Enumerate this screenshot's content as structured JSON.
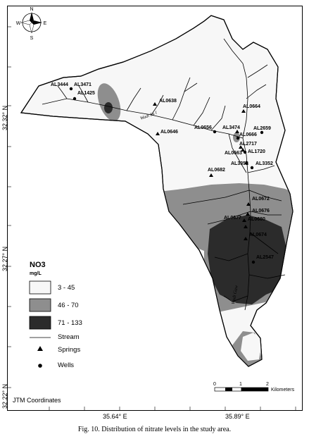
{
  "map": {
    "compass": {
      "north": "N",
      "south": "S",
      "east": "E",
      "west": "W"
    },
    "lat_labels": [
      "32.32° N",
      "32.27° N",
      "32.22° N"
    ],
    "lon_labels": [
      "35.64° E",
      "35.89° E"
    ],
    "coordinate_note": "JTM Coordinates",
    "wadi_labels": [
      "Wadi Su l",
      "Wadi Gaw"
    ],
    "scale_bar": {
      "ticks": [
        "0",
        "1",
        "2"
      ],
      "unit": "Kilometers"
    }
  },
  "legend": {
    "title": "NO3",
    "unit": "mg/L",
    "classes": [
      {
        "label": "3 - 45",
        "color": "#f7f7f7"
      },
      {
        "label": "46 - 70",
        "color": "#8e8e8e"
      },
      {
        "label": "71 - 133",
        "color": "#2b2b2b"
      }
    ],
    "stream": "Stream",
    "springs": "Springs",
    "wells": "Wells"
  },
  "sites": [
    {
      "id": "AL3444",
      "type": "well"
    },
    {
      "id": "AL3471",
      "type": "well"
    },
    {
      "id": "AL1425",
      "type": "well"
    },
    {
      "id": "AL0638",
      "type": "spring"
    },
    {
      "id": "AL0646",
      "type": "spring"
    },
    {
      "id": "AL0656",
      "type": "well"
    },
    {
      "id": "AL3474",
      "type": "spring"
    },
    {
      "id": "AL0664",
      "type": "spring"
    },
    {
      "id": "AL0666",
      "type": "well"
    },
    {
      "id": "AL2659",
      "type": "well"
    },
    {
      "id": "AL2717",
      "type": "spring"
    },
    {
      "id": "AL0663",
      "type": "spring"
    },
    {
      "id": "AL1720",
      "type": "well"
    },
    {
      "id": "AL3352",
      "type": "spring"
    },
    {
      "id": "AL3352",
      "type": "well"
    },
    {
      "id": "AL0682",
      "type": "spring"
    },
    {
      "id": "AL0672",
      "type": "spring"
    },
    {
      "id": "AL0676",
      "type": "spring"
    },
    {
      "id": "AL0677",
      "type": "spring"
    },
    {
      "id": "AL0680",
      "type": "spring"
    },
    {
      "id": "AL0674",
      "type": "spring"
    },
    {
      "id": "AL2547",
      "type": "well"
    }
  ],
  "caption": "Fig. 10. Distribution of nitrate levels in the study area."
}
